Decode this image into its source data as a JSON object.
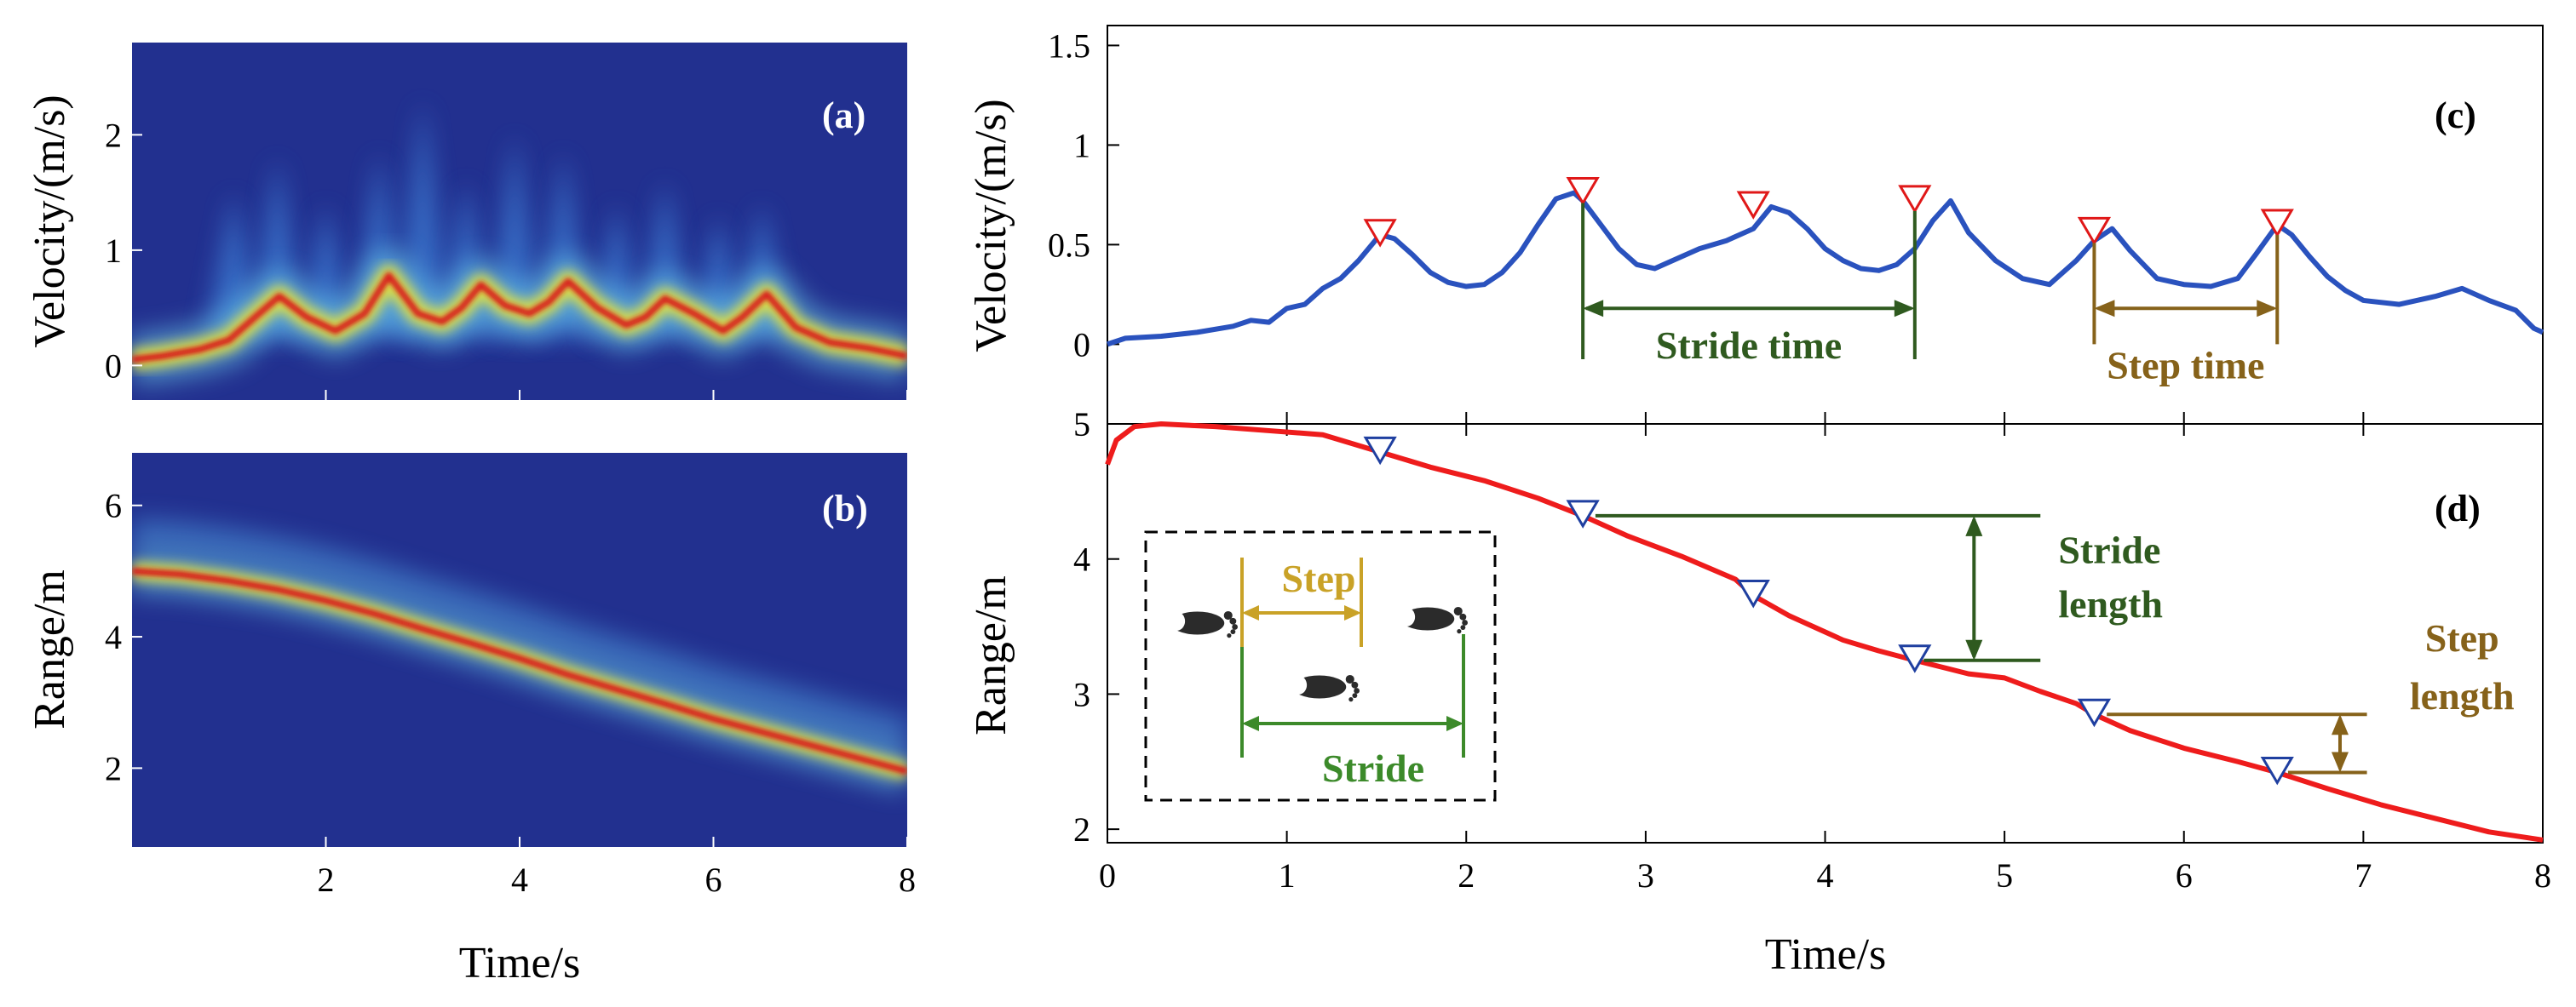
{
  "colors": {
    "velocity_line": "#2a52be",
    "range_line": "#ee1c1c",
    "velocity_marker": "#e01818",
    "range_marker": "#1f3fa0",
    "stride_annotation": "#2f5a1f",
    "step_annotation": "#86621a",
    "inset_step": "#c9a227",
    "inset_stride": "#3c8a2a",
    "heatmap_background": "#22308f"
  },
  "chart_data": [
    {
      "panel": "(a)",
      "type": "heatmap",
      "ylabel": "Velocity/(m/s)",
      "xlabel": "Time/s",
      "xlim": [
        0,
        8
      ],
      "ylim": [
        -0.3,
        2.8
      ],
      "xticks": [
        "2",
        "4",
        "6",
        "8"
      ],
      "yticks": [
        "0",
        "1",
        "2"
      ],
      "ridge": {
        "x": [
          0,
          0.3,
          0.7,
          1.0,
          1.27,
          1.52,
          1.8,
          2.1,
          2.4,
          2.65,
          2.95,
          3.2,
          3.4,
          3.6,
          3.85,
          4.1,
          4.3,
          4.5,
          4.8,
          5.1,
          5.3,
          5.5,
          5.8,
          6.1,
          6.3,
          6.55,
          6.85,
          7.2,
          7.6,
          8.0
        ],
        "y": [
          0.05,
          0.08,
          0.14,
          0.22,
          0.42,
          0.6,
          0.42,
          0.3,
          0.45,
          0.78,
          0.45,
          0.38,
          0.5,
          0.7,
          0.52,
          0.45,
          0.55,
          0.73,
          0.5,
          0.35,
          0.42,
          0.58,
          0.45,
          0.3,
          0.42,
          0.62,
          0.33,
          0.2,
          0.15,
          0.08
        ]
      },
      "bursts": {
        "x": [
          1.05,
          1.5,
          2.0,
          2.55,
          3.0,
          3.45,
          3.95,
          4.45,
          5.0,
          5.5,
          6.05,
          6.5
        ],
        "vmax": [
          1.5,
          1.8,
          1.4,
          1.85,
          2.3,
          1.6,
          2.0,
          1.85,
          1.4,
          1.6,
          1.3,
          1.4
        ]
      }
    },
    {
      "panel": "(b)",
      "type": "heatmap",
      "ylabel": "Range/m",
      "xlabel": "Time/s",
      "xlim": [
        0,
        8
      ],
      "ylim": [
        0.8,
        6.8
      ],
      "xticks": [
        "2",
        "4",
        "6",
        "8"
      ],
      "yticks": [
        "2",
        "4",
        "6"
      ],
      "ridge": {
        "x": [
          0,
          0.5,
          1.0,
          1.5,
          2.0,
          2.5,
          3.0,
          3.5,
          4.0,
          4.5,
          5.0,
          5.5,
          6.0,
          6.5,
          7.0,
          7.5,
          8.0
        ],
        "y": [
          5.0,
          4.95,
          4.85,
          4.72,
          4.55,
          4.35,
          4.12,
          3.9,
          3.67,
          3.42,
          3.2,
          2.98,
          2.75,
          2.55,
          2.35,
          2.15,
          1.95
        ]
      }
    },
    {
      "panel": "(c)",
      "type": "line",
      "ylabel": "Velocity/(m/s)",
      "xlim": [
        0,
        8
      ],
      "ylim": [
        -0.4,
        1.6
      ],
      "yticks": [
        "0",
        "0.5",
        "1",
        "1.5"
      ],
      "series": [
        {
          "x": [
            0,
            0.1,
            0.3,
            0.5,
            0.7,
            0.8,
            0.9,
            1.0,
            1.1,
            1.2,
            1.3,
            1.4,
            1.52,
            1.6,
            1.7,
            1.8,
            1.9,
            2.0,
            2.1,
            2.2,
            2.3,
            2.4,
            2.5,
            2.6,
            2.65,
            2.75,
            2.85,
            2.95,
            3.05,
            3.15,
            3.3,
            3.45,
            3.6,
            3.7,
            3.8,
            3.9,
            4.0,
            4.1,
            4.2,
            4.3,
            4.4,
            4.5,
            4.6,
            4.7,
            4.8,
            4.95,
            5.1,
            5.25,
            5.4,
            5.5,
            5.6,
            5.7,
            5.85,
            6.0,
            6.15,
            6.3,
            6.4,
            6.52,
            6.6,
            6.7,
            6.8,
            6.9,
            7.0,
            7.2,
            7.4,
            7.55,
            7.7,
            7.85,
            7.95,
            8.0
          ],
          "y": [
            0.0,
            0.03,
            0.04,
            0.06,
            0.09,
            0.12,
            0.11,
            0.18,
            0.2,
            0.28,
            0.33,
            0.42,
            0.55,
            0.53,
            0.45,
            0.36,
            0.31,
            0.29,
            0.3,
            0.36,
            0.46,
            0.6,
            0.73,
            0.76,
            0.72,
            0.6,
            0.48,
            0.4,
            0.38,
            0.42,
            0.48,
            0.52,
            0.58,
            0.69,
            0.66,
            0.58,
            0.48,
            0.42,
            0.38,
            0.37,
            0.4,
            0.48,
            0.62,
            0.72,
            0.56,
            0.42,
            0.33,
            0.3,
            0.42,
            0.52,
            0.58,
            0.47,
            0.33,
            0.3,
            0.29,
            0.33,
            0.45,
            0.6,
            0.55,
            0.44,
            0.34,
            0.27,
            0.22,
            0.2,
            0.24,
            0.28,
            0.22,
            0.17,
            0.08,
            0.06
          ]
        }
      ],
      "markers": {
        "x": [
          1.52,
          2.65,
          3.6,
          4.5,
          5.5,
          6.52
        ],
        "y": [
          0.55,
          0.76,
          0.69,
          0.72,
          0.56,
          0.6
        ]
      },
      "annotations": [
        {
          "text": "Stride time",
          "from": 2.65,
          "to": 4.5
        },
        {
          "text": "Step time",
          "from": 5.5,
          "to": 6.52
        }
      ]
    },
    {
      "panel": "(d)",
      "type": "line",
      "ylabel": "Range/m",
      "xlabel": "Time/s",
      "xlim": [
        0,
        8
      ],
      "ylim": [
        1.9,
        5.0
      ],
      "xticks": [
        "0",
        "1",
        "2",
        "3",
        "4",
        "5",
        "6",
        "7",
        "8"
      ],
      "yticks": [
        "2",
        "3",
        "4",
        "5"
      ],
      "series": [
        {
          "x": [
            0,
            0.05,
            0.15,
            0.3,
            0.6,
            0.9,
            1.2,
            1.5,
            1.8,
            2.1,
            2.4,
            2.65,
            2.9,
            3.2,
            3.5,
            3.6,
            3.8,
            4.1,
            4.3,
            4.5,
            4.8,
            5.0,
            5.2,
            5.4,
            5.5,
            5.7,
            6.0,
            6.3,
            6.52,
            6.8,
            7.1,
            7.4,
            7.7,
            8.0
          ],
          "y": [
            4.7,
            4.88,
            4.98,
            5.0,
            4.98,
            4.95,
            4.92,
            4.8,
            4.68,
            4.58,
            4.45,
            4.32,
            4.17,
            4.02,
            3.85,
            3.73,
            3.58,
            3.4,
            3.32,
            3.25,
            3.15,
            3.12,
            3.02,
            2.93,
            2.85,
            2.73,
            2.6,
            2.5,
            2.42,
            2.3,
            2.18,
            2.08,
            1.98,
            1.92
          ]
        }
      ],
      "markers": {
        "x": [
          1.52,
          2.65,
          3.6,
          4.5,
          5.5,
          6.52
        ],
        "y": [
          4.79,
          4.32,
          3.73,
          3.25,
          2.85,
          2.42
        ]
      },
      "annotations": [
        {
          "text_lines": [
            "Stride",
            "length"
          ],
          "from": 4.32,
          "to": 3.25
        },
        {
          "text_lines": [
            "Step",
            "length"
          ],
          "from": 2.85,
          "to": 2.42
        }
      ],
      "inset": {
        "step_label": "Step",
        "stride_label": "Stride"
      }
    }
  ]
}
